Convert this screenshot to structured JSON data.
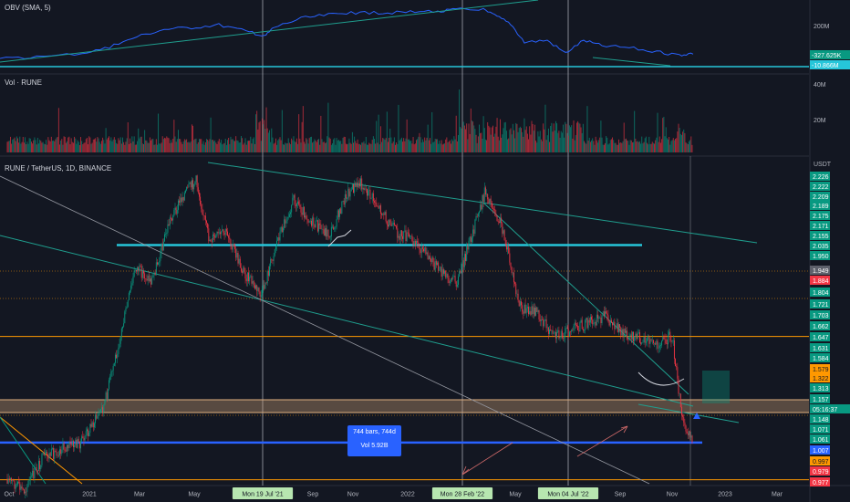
{
  "panes": {
    "obv": {
      "title": "OBV (SMA, 5)",
      "scale_labels": [
        "200M"
      ],
      "readouts": [
        {
          "text": "-327.625K",
          "color": "#089981"
        },
        {
          "text": "-10.866M",
          "color": "#26c6da"
        }
      ]
    },
    "volume": {
      "title": "Vol · RUNE",
      "scale_labels": [
        "40M",
        "20M"
      ]
    },
    "main": {
      "title": "RUNE / TetherUS, 1D, BINANCE",
      "currency": "USDT"
    }
  },
  "colors": {
    "background": "#131722",
    "grid": "#2a2e39",
    "up": "#089981",
    "down": "#f23645",
    "trend": "#1f9e8e",
    "cyan": "#26c6da",
    "orange": "#ff9800",
    "blue": "#2962ff",
    "obv_line": "#2962ff"
  },
  "time_labels": [
    {
      "text": "Oct",
      "highlight": false
    },
    {
      "text": "2021",
      "highlight": false
    },
    {
      "text": "Mar",
      "highlight": false
    },
    {
      "text": "May",
      "highlight": false
    },
    {
      "text": "Mon 19 Jul '21",
      "highlight": true
    },
    {
      "text": "Sep",
      "highlight": false
    },
    {
      "text": "Nov",
      "highlight": false
    },
    {
      "text": "2022",
      "highlight": false
    },
    {
      "text": "Mon 28 Feb '22",
      "highlight": true
    },
    {
      "text": "May",
      "highlight": false
    },
    {
      "text": "Mon 04 Jul '22",
      "highlight": true
    },
    {
      "text": "Sep",
      "highlight": false
    },
    {
      "text": "Nov",
      "highlight": false
    },
    {
      "text": "2023",
      "highlight": false
    },
    {
      "text": "Mar",
      "highlight": false
    }
  ],
  "price_labels": [
    {
      "text": "2.226",
      "bg": "#089981",
      "fg": "#ffffff"
    },
    {
      "text": "2.222",
      "bg": "#089981",
      "fg": "#ffffff"
    },
    {
      "text": "2.209",
      "bg": "#089981",
      "fg": "#ffffff"
    },
    {
      "text": "2.189",
      "bg": "#089981",
      "fg": "#ffffff"
    },
    {
      "text": "2.175",
      "bg": "#089981",
      "fg": "#ffffff"
    },
    {
      "text": "2.171",
      "bg": "#089981",
      "fg": "#ffffff"
    },
    {
      "text": "2.155",
      "bg": "#089981",
      "fg": "#ffffff"
    },
    {
      "text": "2.035",
      "bg": "#089981",
      "fg": "#ffffff"
    },
    {
      "text": "1.950",
      "bg": "#089981",
      "fg": "#ffffff"
    },
    {
      "text": "1.949",
      "bg": "#5d606b",
      "fg": "#ffffff"
    },
    {
      "text": "1.884",
      "bg": "#f23645",
      "fg": "#ffffff"
    },
    {
      "text": "1.804",
      "bg": "#089981",
      "fg": "#ffffff"
    },
    {
      "text": "1.721",
      "bg": "#089981",
      "fg": "#ffffff"
    },
    {
      "text": "1.703",
      "bg": "#089981",
      "fg": "#ffffff"
    },
    {
      "text": "1.662",
      "bg": "#089981",
      "fg": "#ffffff"
    },
    {
      "text": "1.647",
      "bg": "#089981",
      "fg": "#ffffff"
    },
    {
      "text": "1.631",
      "bg": "#089981",
      "fg": "#ffffff"
    },
    {
      "text": "1.584",
      "bg": "#089981",
      "fg": "#ffffff"
    },
    {
      "text": "1.579",
      "bg": "#ff9800",
      "fg": "#131722"
    },
    {
      "text": "1.322",
      "bg": "#ff9800",
      "fg": "#131722"
    },
    {
      "text": "1.313",
      "bg": "#089981",
      "fg": "#ffffff"
    },
    {
      "text": "1.157",
      "bg": "#089981",
      "fg": "#ffffff"
    },
    {
      "text": "05:16:37",
      "bg": "#089981",
      "fg": "#ffffff"
    },
    {
      "text": "1.148",
      "bg": "#089981",
      "fg": "#ffffff"
    },
    {
      "text": "1.071",
      "bg": "#089981",
      "fg": "#ffffff"
    },
    {
      "text": "1.061",
      "bg": "#089981",
      "fg": "#ffffff"
    },
    {
      "text": "1.007",
      "bg": "#2962ff",
      "fg": "#ffffff"
    },
    {
      "text": "0.997",
      "bg": "#ff9800",
      "fg": "#131722"
    },
    {
      "text": "0.979",
      "bg": "#f23645",
      "fg": "#ffffff"
    },
    {
      "text": "0.977",
      "bg": "#f23645",
      "fg": "#ffffff"
    }
  ],
  "measure_box": {
    "line1": "744 bars, 744d",
    "line2": "Vol 5.92B"
  },
  "chart_data": {
    "type": "candlestick",
    "symbol": "RUNE / TetherUS",
    "interval": "1D",
    "exchange": "BINANCE",
    "close_path": [
      {
        "date": "2020-10-01",
        "close": 1.0
      },
      {
        "date": "2020-10-20",
        "close": 0.95
      },
      {
        "date": "2020-11-10",
        "close": 1.08
      },
      {
        "date": "2020-12-01",
        "close": 1.12
      },
      {
        "date": "2020-12-25",
        "close": 1.15
      },
      {
        "date": "2021-01-20",
        "close": 1.3
      },
      {
        "date": "2021-02-10",
        "close": 1.62
      },
      {
        "date": "2021-02-25",
        "close": 1.86
      },
      {
        "date": "2021-03-15",
        "close": 1.8
      },
      {
        "date": "2021-04-05",
        "close": 2.05
      },
      {
        "date": "2021-04-20",
        "close": 2.15
      },
      {
        "date": "2021-05-05",
        "close": 2.21
      },
      {
        "date": "2021-05-20",
        "close": 1.97
      },
      {
        "date": "2021-06-10",
        "close": 2.0
      },
      {
        "date": "2021-06-25",
        "close": 1.86
      },
      {
        "date": "2021-07-19",
        "close": 1.74
      },
      {
        "date": "2021-08-05",
        "close": 1.96
      },
      {
        "date": "2021-08-25",
        "close": 2.14
      },
      {
        "date": "2021-09-15",
        "close": 2.04
      },
      {
        "date": "2021-10-05",
        "close": 1.99
      },
      {
        "date": "2021-10-25",
        "close": 2.16
      },
      {
        "date": "2021-11-10",
        "close": 2.2
      },
      {
        "date": "2021-12-01",
        "close": 2.1
      },
      {
        "date": "2021-12-20",
        "close": 2.0
      },
      {
        "date": "2022-01-10",
        "close": 1.97
      },
      {
        "date": "2022-01-30",
        "close": 1.88
      },
      {
        "date": "2022-02-15",
        "close": 1.82
      },
      {
        "date": "2022-02-28",
        "close": 1.8
      },
      {
        "date": "2022-03-15",
        "close": 1.97
      },
      {
        "date": "2022-04-01",
        "close": 2.17
      },
      {
        "date": "2022-04-20",
        "close": 2.03
      },
      {
        "date": "2022-05-10",
        "close": 1.7
      },
      {
        "date": "2022-06-01",
        "close": 1.67
      },
      {
        "date": "2022-06-18",
        "close": 1.57
      },
      {
        "date": "2022-07-04",
        "close": 1.6
      },
      {
        "date": "2022-07-25",
        "close": 1.63
      },
      {
        "date": "2022-08-15",
        "close": 1.66
      },
      {
        "date": "2022-09-05",
        "close": 1.6
      },
      {
        "date": "2022-09-25",
        "close": 1.57
      },
      {
        "date": "2022-10-15",
        "close": 1.55
      },
      {
        "date": "2022-11-01",
        "close": 1.58
      },
      {
        "date": "2022-11-12",
        "close": 1.25
      },
      {
        "date": "2022-11-25",
        "close": 1.157
      }
    ],
    "last_price": 1.157,
    "horizontal_levels": [
      1.95,
      1.579,
      1.148,
      1.007,
      0.997
    ],
    "drawn_lines": [
      "resistance trendline from May 2021 high",
      "resistance trendline from Apr 2022 high",
      "support trendline",
      "long descending diagonal"
    ]
  }
}
